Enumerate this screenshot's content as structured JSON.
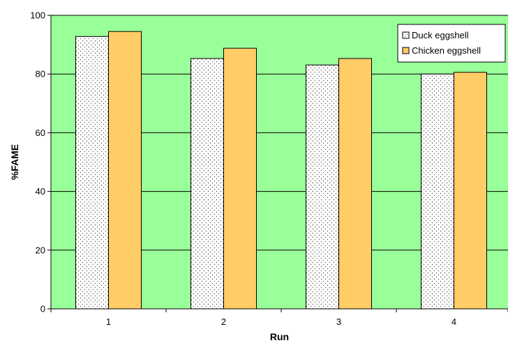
{
  "chart_data": {
    "type": "bar",
    "title": "",
    "xlabel": "Run",
    "ylabel": "%FAME",
    "categories": [
      "1",
      "2",
      "3",
      "4"
    ],
    "ylim": [
      0,
      100
    ],
    "yticks": [
      0,
      20,
      40,
      60,
      80,
      100
    ],
    "grid": true,
    "legend_position": "top-right",
    "plot_background": "#99FF99",
    "series": [
      {
        "name": "Duck eggshell",
        "values": [
          92.8,
          85.3,
          83.1,
          80.0
        ],
        "color": "#FFFFFF",
        "pattern": "dotted"
      },
      {
        "name": "Chicken eggshell",
        "values": [
          94.5,
          88.8,
          85.3,
          80.6
        ],
        "color": "#FFCC66",
        "pattern": "solid"
      }
    ]
  }
}
